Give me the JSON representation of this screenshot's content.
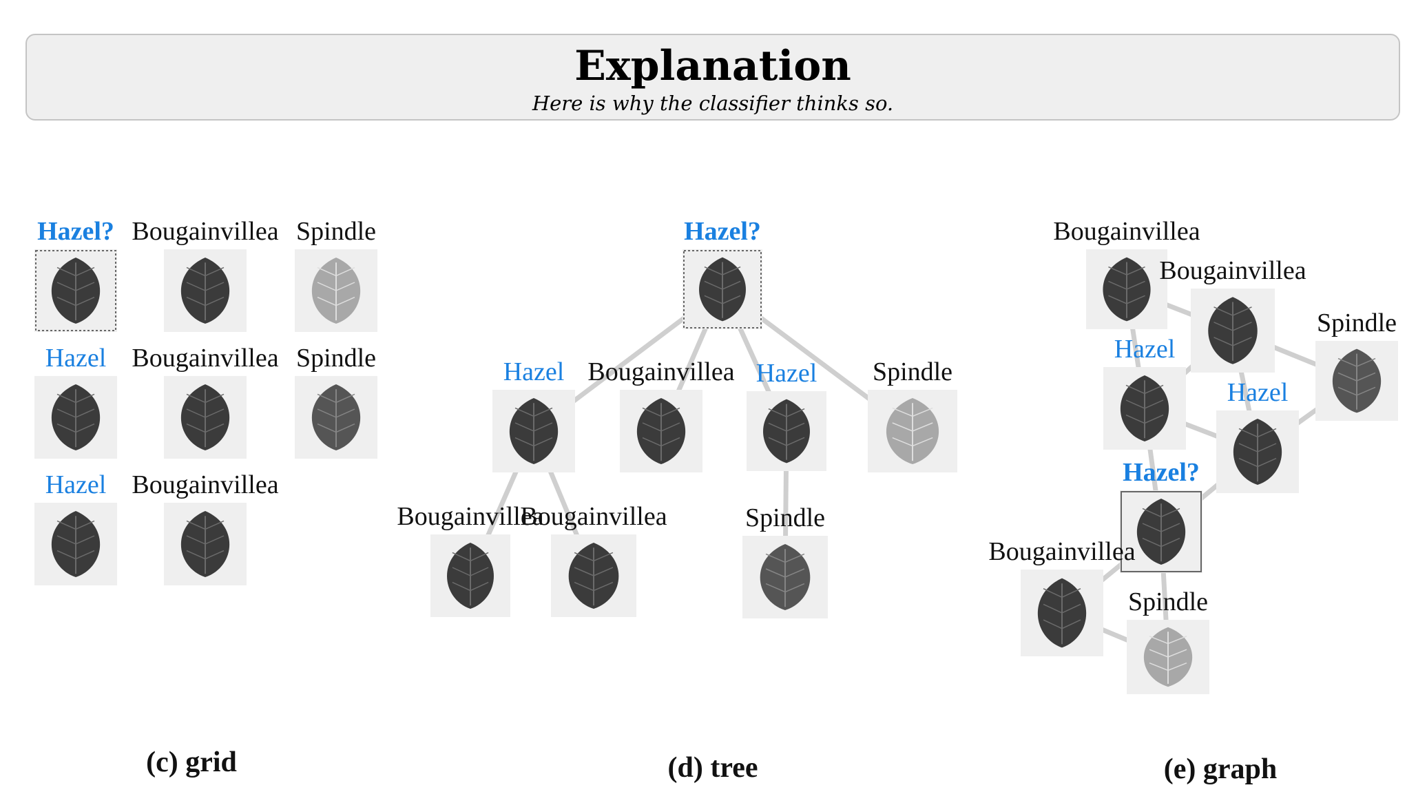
{
  "header": {
    "title": "Explanation",
    "subtitle": "Here is why the classifier thinks so."
  },
  "colors": {
    "query": "#1a80e0",
    "same_class": "#1a80e0",
    "other_class": "#111111",
    "edge": "#cfcfcf",
    "tile": "#efefef"
  },
  "panels": [
    {
      "id": "grid",
      "caption": "(c) grid",
      "nodes": [
        {
          "label": "Hazel?",
          "role": "query",
          "leaf_tone": "dark"
        },
        {
          "label": "Bougainvillea",
          "role": "other",
          "leaf_tone": "dark"
        },
        {
          "label": "Spindle",
          "role": "other",
          "leaf_tone": "light"
        },
        {
          "label": "Hazel",
          "role": "same",
          "leaf_tone": "dark"
        },
        {
          "label": "Bougainvillea",
          "role": "other",
          "leaf_tone": "dark"
        },
        {
          "label": "Spindle",
          "role": "other",
          "leaf_tone": "medium"
        },
        {
          "label": "Hazel",
          "role": "same",
          "leaf_tone": "dark"
        },
        {
          "label": "Bougainvillea",
          "role": "other",
          "leaf_tone": "dark"
        }
      ],
      "edges": []
    },
    {
      "id": "tree",
      "caption": "(d) tree",
      "nodes": [
        {
          "label": "Hazel?",
          "role": "query",
          "leaf_tone": "dark"
        },
        {
          "label": "Hazel",
          "role": "same",
          "leaf_tone": "dark"
        },
        {
          "label": "Bougainvillea",
          "role": "other",
          "leaf_tone": "dark"
        },
        {
          "label": "Hazel",
          "role": "same",
          "leaf_tone": "dark"
        },
        {
          "label": "Spindle",
          "role": "other",
          "leaf_tone": "light"
        },
        {
          "label": "Bougainvillea",
          "role": "other",
          "leaf_tone": "dark"
        },
        {
          "label": "Bougainvillea",
          "role": "other",
          "leaf_tone": "dark"
        },
        {
          "label": "Spindle",
          "role": "other",
          "leaf_tone": "medium"
        }
      ],
      "edges": [
        [
          0,
          1
        ],
        [
          0,
          2
        ],
        [
          0,
          3
        ],
        [
          0,
          4
        ],
        [
          1,
          5
        ],
        [
          1,
          6
        ],
        [
          3,
          7
        ]
      ]
    },
    {
      "id": "graph",
      "caption": "(e) graph",
      "nodes": [
        {
          "label": "Bougainvillea",
          "role": "other",
          "leaf_tone": "dark"
        },
        {
          "label": "Bougainvillea",
          "role": "other",
          "leaf_tone": "dark"
        },
        {
          "label": "Spindle",
          "role": "other",
          "leaf_tone": "medium"
        },
        {
          "label": "Hazel",
          "role": "same",
          "leaf_tone": "dark"
        },
        {
          "label": "Hazel",
          "role": "same",
          "leaf_tone": "dark"
        },
        {
          "label": "Hazel?",
          "role": "query",
          "leaf_tone": "dark"
        },
        {
          "label": "Bougainvillea",
          "role": "other",
          "leaf_tone": "dark"
        },
        {
          "label": "Spindle",
          "role": "other",
          "leaf_tone": "light"
        }
      ],
      "edges": [
        [
          0,
          1
        ],
        [
          0,
          3
        ],
        [
          1,
          2
        ],
        [
          1,
          3
        ],
        [
          1,
          4
        ],
        [
          2,
          4
        ],
        [
          3,
          4
        ],
        [
          3,
          5
        ],
        [
          4,
          5
        ],
        [
          5,
          6
        ],
        [
          5,
          7
        ],
        [
          6,
          7
        ]
      ]
    }
  ]
}
